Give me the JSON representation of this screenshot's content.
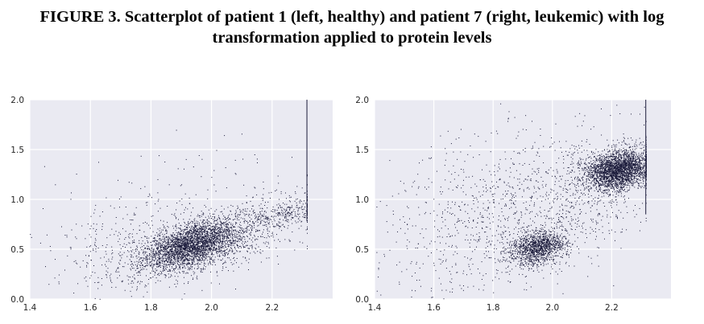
{
  "figure": {
    "caption_line1": "FIGURE 3. Scatterplot of patient 1 (left, healthy) and patient 7 (right, leukemic) with log",
    "caption_line2": "transformation applied to protein levels"
  },
  "colors": {
    "plot_bg": "#eaeaf2",
    "grid": "#ffffff",
    "point": "#1a1a3a"
  },
  "chart_data": [
    {
      "type": "scatter",
      "title": "",
      "xlabel": "",
      "ylabel": "",
      "xlim": [
        1.4,
        2.4
      ],
      "ylim": [
        0.0,
        2.0
      ],
      "xticks": [
        "1.4",
        "1.6",
        "1.8",
        "2.0",
        "2.2"
      ],
      "yticks": [
        "0.0",
        "0.5",
        "1.0",
        "1.5",
        "2.0"
      ],
      "grid": true,
      "clusters": [
        {
          "x": 1.93,
          "y": 0.55,
          "sx": 0.075,
          "sy": 0.12,
          "rho": 0.5,
          "n": 2600
        },
        {
          "x": 2.02,
          "y": 0.58,
          "sx": 0.14,
          "sy": 0.19,
          "rho": 0.6,
          "n": 1000
        },
        {
          "x": 1.72,
          "y": 0.45,
          "sx": 0.12,
          "sy": 0.22,
          "rho": 0.2,
          "n": 320
        },
        {
          "x": 2.22,
          "y": 0.85,
          "sx": 0.07,
          "sy": 0.08,
          "rho": 0.5,
          "n": 260
        },
        {
          "x": 1.95,
          "y": 0.9,
          "sx": 0.2,
          "sy": 0.35,
          "rho": 0.1,
          "n": 160
        }
      ],
      "edge_line": {
        "x": 2.315,
        "y_range": [
          0.78,
          2.0
        ]
      }
    },
    {
      "type": "scatter",
      "title": "",
      "xlabel": "",
      "ylabel": "",
      "xlim": [
        1.4,
        2.4
      ],
      "ylim": [
        0.0,
        2.0
      ],
      "xticks": [
        "1.4",
        "1.6",
        "1.8",
        "2.0",
        "2.2"
      ],
      "yticks": [
        "0.0",
        "0.5",
        "1.0",
        "1.5",
        "2.0"
      ],
      "grid": true,
      "clusters": [
        {
          "x": 1.95,
          "y": 0.52,
          "sx": 0.048,
          "sy": 0.09,
          "rho": 0.3,
          "n": 1300
        },
        {
          "x": 2.22,
          "y": 1.3,
          "sx": 0.055,
          "sy": 0.1,
          "rho": 0.2,
          "n": 2700
        },
        {
          "x": 1.8,
          "y": 0.85,
          "sx": 0.19,
          "sy": 0.45,
          "rho": 0.35,
          "n": 900
        },
        {
          "x": 2.1,
          "y": 1.05,
          "sx": 0.13,
          "sy": 0.35,
          "rho": 0.4,
          "n": 500
        }
      ],
      "edge_line": {
        "x": 2.315,
        "y_range": [
          0.85,
          2.0
        ]
      }
    }
  ]
}
